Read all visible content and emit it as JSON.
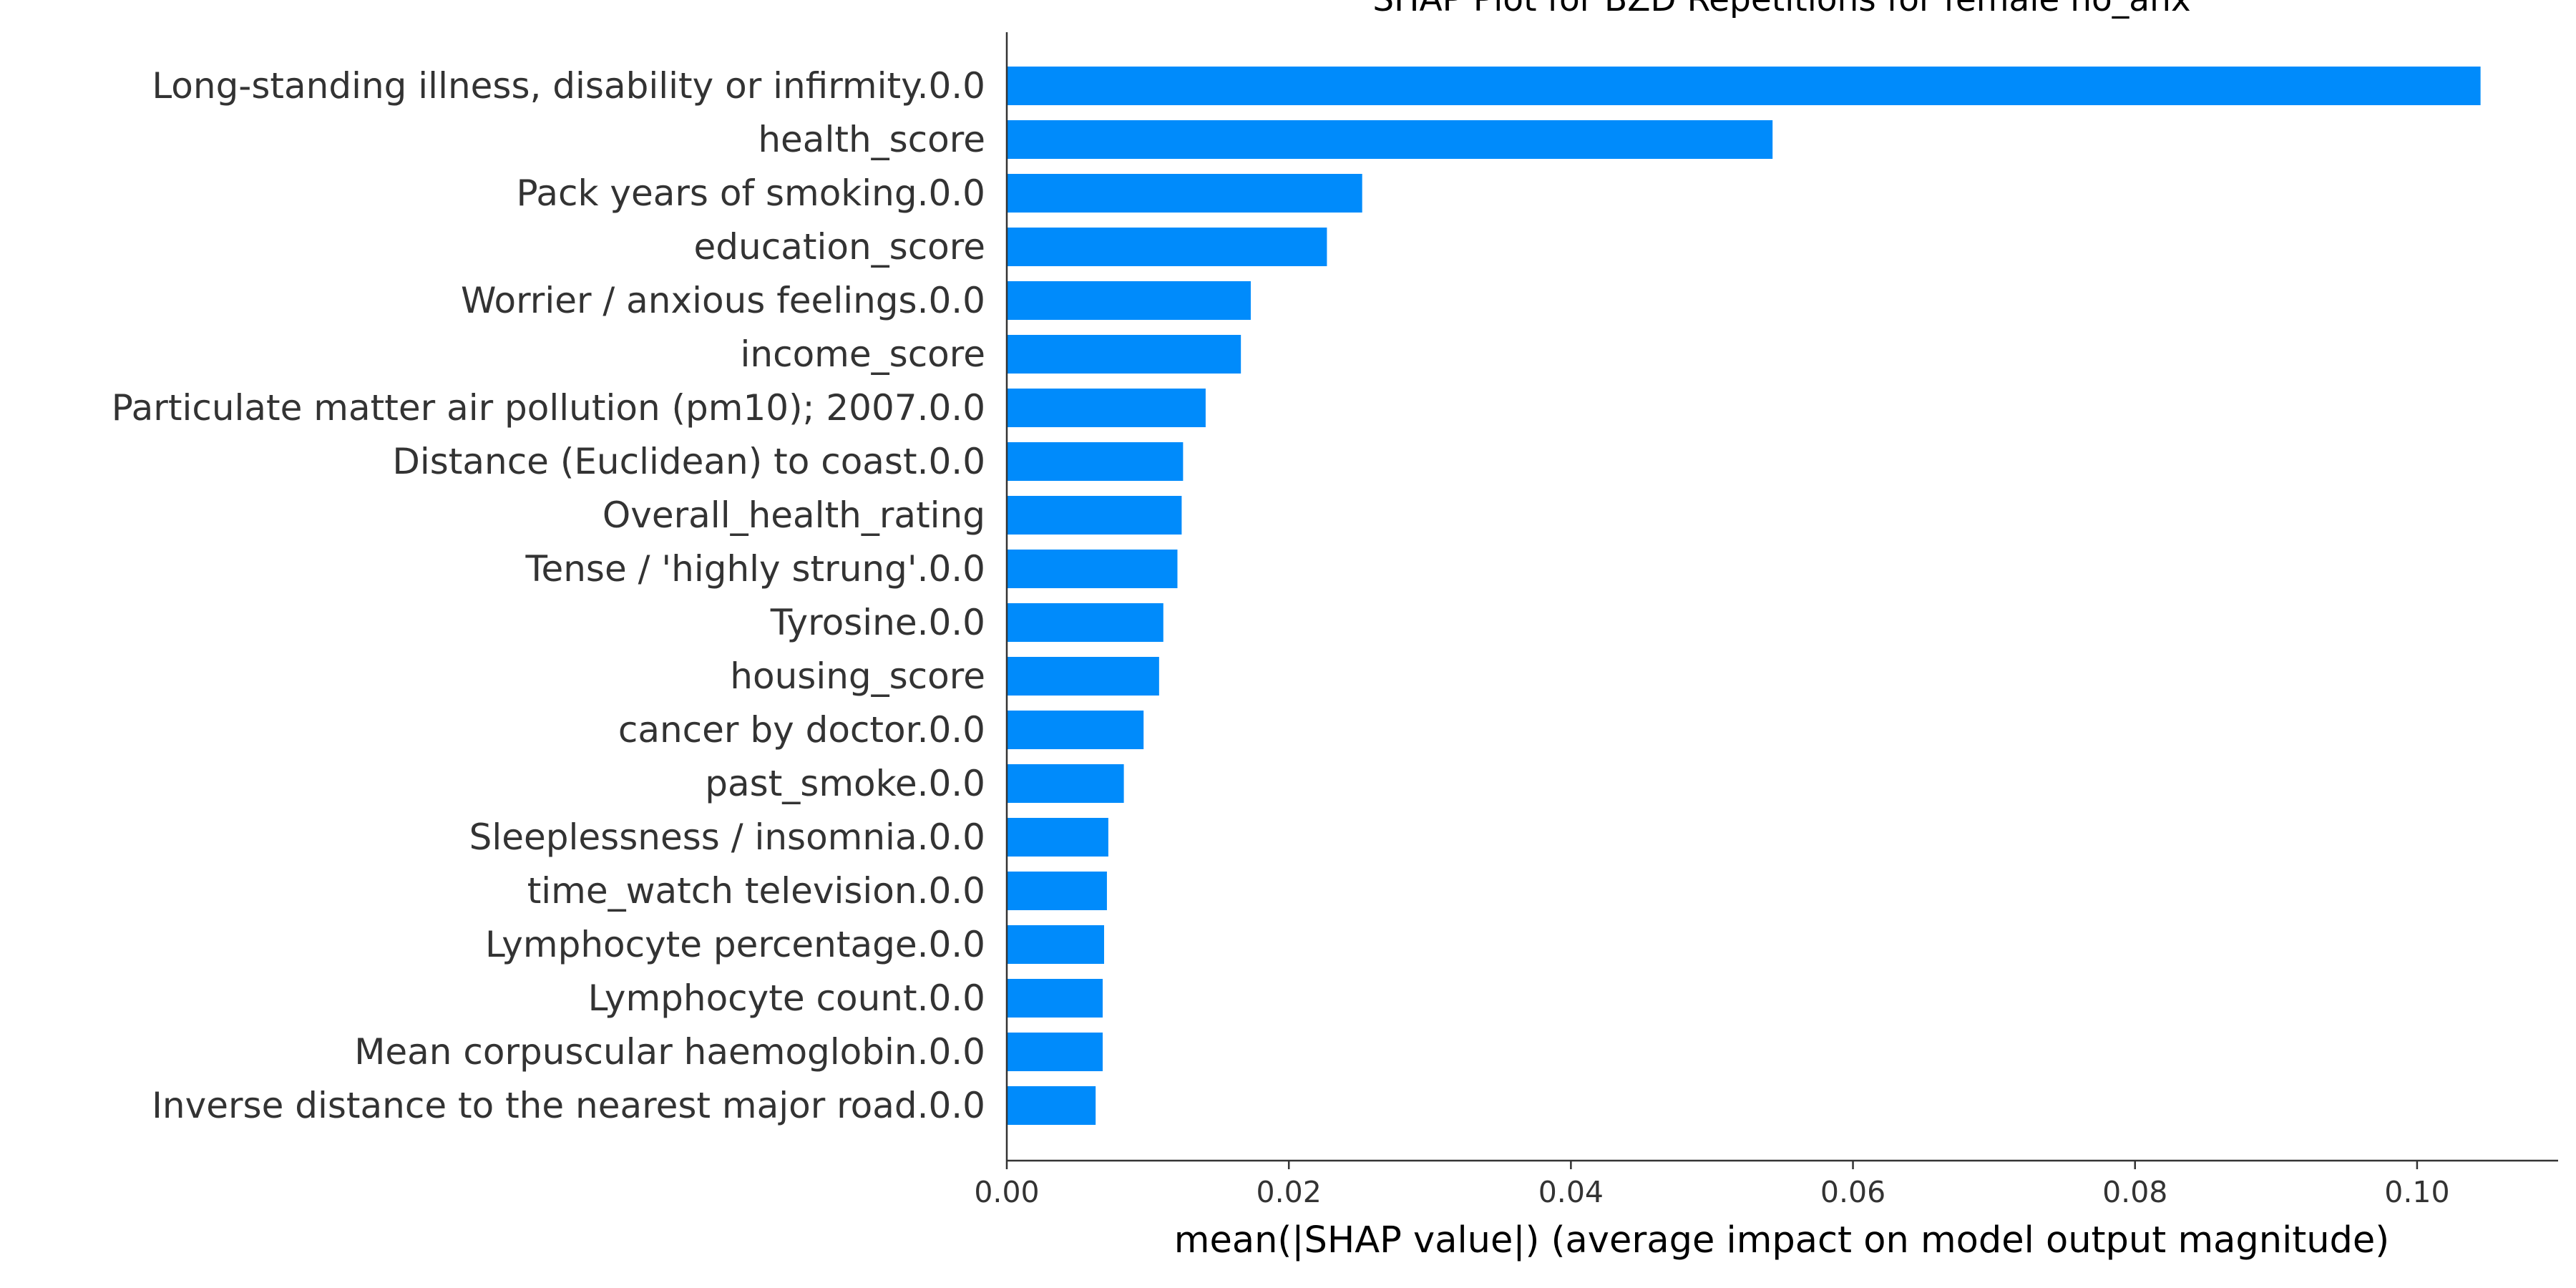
{
  "chart_data": {
    "type": "bar",
    "orientation": "horizontal",
    "title": "SHAP Plot for BZD Repetitions for female no_anx",
    "xlabel": "mean(|SHAP value|) (average impact on model output magnitude)",
    "ylabel": "",
    "xlim": [
      0.0,
      0.11
    ],
    "x_ticks": [
      0.0,
      0.02,
      0.04,
      0.06,
      0.08,
      0.1
    ],
    "x_tick_labels": [
      "0.00",
      "0.02",
      "0.04",
      "0.06",
      "0.08",
      "0.10"
    ],
    "grid": false,
    "bar_color": "#008bfb",
    "categories": [
      "Long-standing illness, disability or infirmity.0.0",
      "health_score",
      "Pack years of smoking.0.0",
      "education_score",
      "Worrier / anxious feelings.0.0",
      "income_score",
      "Particulate matter air pollution (pm10); 2007.0.0",
      "Distance (Euclidean) to coast.0.0",
      "Overall_health_rating",
      "Tense / 'highly strung'.0.0",
      "Tyrosine.0.0",
      "housing_score",
      "cancer by doctor.0.0",
      "past_smoke.0.0",
      "Sleeplessness / insomnia.0.0",
      "time_watch television.0.0",
      "Lymphocyte percentage.0.0",
      "Lymphocyte count.0.0",
      "Mean corpuscular haemoglobin.0.0",
      "Inverse distance to the nearest major road.0.0"
    ],
    "values": [
      0.1045,
      0.0543,
      0.0252,
      0.0227,
      0.0173,
      0.0166,
      0.0141,
      0.0125,
      0.0124,
      0.0121,
      0.0111,
      0.0108,
      0.0097,
      0.0083,
      0.0072,
      0.0071,
      0.0069,
      0.0068,
      0.0068,
      0.0063
    ]
  }
}
